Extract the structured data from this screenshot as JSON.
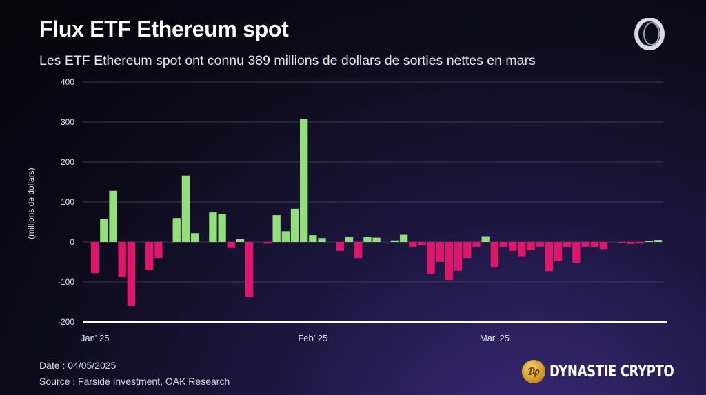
{
  "header": {
    "title": "Flux ETF Ethereum spot",
    "subtitle": "Les ETF Ethereum spot ont connu 389 millions de dollars de sorties nettes en mars"
  },
  "footer": {
    "date": "Date : 04/05/2025",
    "source": "Source : Farside Investment, OAK Research",
    "brand": "DYNASTIE CRYPTO"
  },
  "colors": {
    "positive": "#93e07a",
    "negative": "#e0156b",
    "grid": "#3c3c4e",
    "axis": "#ffffff"
  },
  "icons": {
    "top_logo": "ring-logo-icon",
    "brand_coin": "gold-coin-icon"
  },
  "chart_data": {
    "type": "bar",
    "ylabel": "(millions de dollars)",
    "ylim": [
      -200,
      400
    ],
    "yticks": [
      400,
      300,
      200,
      100,
      0,
      -100,
      -200
    ],
    "xtick_labels": [
      {
        "label": "Jan' 25",
        "index": 0
      },
      {
        "label": "Feb' 25",
        "index": 24
      },
      {
        "label": "Mar' 25",
        "index": 44
      }
    ],
    "values": [
      -78,
      58,
      128,
      -88,
      -160,
      0,
      -70,
      -40,
      0,
      60,
      166,
      22,
      0,
      74,
      70,
      -15,
      7,
      -138,
      0,
      -4,
      67,
      27,
      83,
      308,
      17,
      10,
      0,
      -22,
      12,
      -40,
      12,
      11,
      0,
      4,
      18,
      -12,
      -8,
      -80,
      -50,
      -95,
      -72,
      -40,
      -12,
      13,
      -63,
      -12,
      -22,
      -37,
      -20,
      -12,
      -73,
      -48,
      -13,
      -52,
      -12,
      -12,
      -18,
      0,
      -2,
      -5,
      -4,
      3,
      5
    ]
  }
}
